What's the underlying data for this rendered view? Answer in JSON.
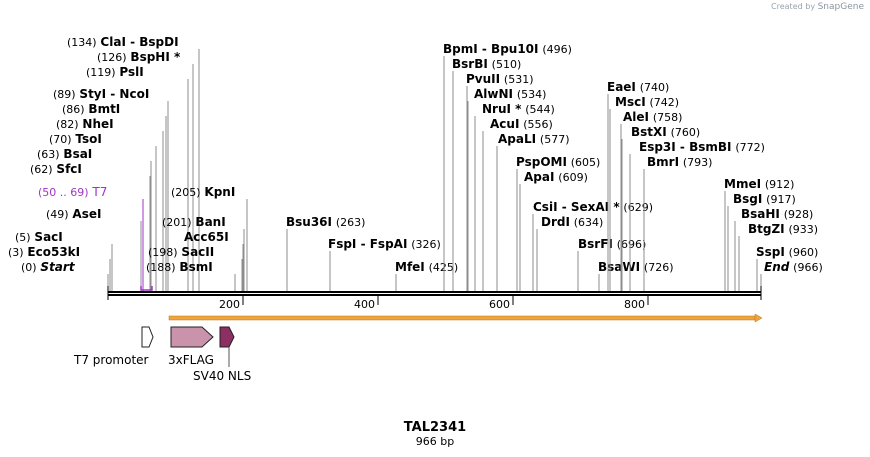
{
  "watermark": {
    "prefix": "Created by",
    "brand": "SnapGene"
  },
  "plasmid": {
    "name": "TAL2341",
    "length_label": "966 bp",
    "length": 966
  },
  "axis_ticks": [
    "200",
    "400",
    "600",
    "800"
  ],
  "sites": [
    {
      "name": "Start",
      "pos": "0",
      "end": true
    },
    {
      "name": "Eco53kI",
      "pos": "3"
    },
    {
      "name": "SacI",
      "pos": "5"
    },
    {
      "name": "AseI",
      "pos": "49"
    },
    {
      "name": "T7",
      "pos": "50 .. 69",
      "primer": true
    },
    {
      "name": "SfcI",
      "pos": "62"
    },
    {
      "name": "BsaI",
      "pos": "63"
    },
    {
      "name": "TsoI",
      "pos": "70"
    },
    {
      "name": "NheI",
      "pos": "82"
    },
    {
      "name": "BmtI",
      "pos": "86"
    },
    {
      "name": "StyI - NcoI",
      "pos": "89"
    },
    {
      "name": "PslI",
      "pos": "119"
    },
    {
      "name": "BspHI *",
      "pos": "126"
    },
    {
      "name": "ClaI - BspDI",
      "pos": "134"
    },
    {
      "name": "BsmI",
      "pos": "188"
    },
    {
      "name": "SacII",
      "pos": "198"
    },
    {
      "name": "Acc65I",
      "pos": ""
    },
    {
      "name": "BanI",
      "pos": "201"
    },
    {
      "name": "KpnI",
      "pos": "205"
    },
    {
      "name": "Bsu36I",
      "pos": "263"
    },
    {
      "name": "FspI - FspAI",
      "pos": "326"
    },
    {
      "name": "MfeI",
      "pos": "425"
    },
    {
      "name": "BpmI - Bpu10I",
      "pos": "496"
    },
    {
      "name": "BsrBI",
      "pos": "510"
    },
    {
      "name": "PvuII",
      "pos": "531"
    },
    {
      "name": "AlwNI",
      "pos": "534"
    },
    {
      "name": "NruI *",
      "pos": "544"
    },
    {
      "name": "AcuI",
      "pos": "556"
    },
    {
      "name": "ApaLI",
      "pos": "577"
    },
    {
      "name": "PspOMI",
      "pos": "605"
    },
    {
      "name": "ApaI",
      "pos": "609"
    },
    {
      "name": "CsiI - SexAI *",
      "pos": "629"
    },
    {
      "name": "DrdI",
      "pos": "634"
    },
    {
      "name": "BsrFI",
      "pos": "696"
    },
    {
      "name": "BsaWI",
      "pos": "726"
    },
    {
      "name": "EaeI",
      "pos": "740"
    },
    {
      "name": "MscI",
      "pos": "742"
    },
    {
      "name": "AleI",
      "pos": "758"
    },
    {
      "name": "BstXI",
      "pos": "760"
    },
    {
      "name": "Esp3I - BsmBI",
      "pos": "772"
    },
    {
      "name": "BmrI",
      "pos": "793"
    },
    {
      "name": "MmeI",
      "pos": "912"
    },
    {
      "name": "BsgI",
      "pos": "917"
    },
    {
      "name": "BsaHI",
      "pos": "928"
    },
    {
      "name": "BtgZI",
      "pos": "933"
    },
    {
      "name": "SspI",
      "pos": "960"
    },
    {
      "name": "End",
      "pos": "966",
      "end": true
    }
  ],
  "features": [
    {
      "name": "T7 promoter",
      "color": "#ffffff"
    },
    {
      "name": "3xFLAG",
      "color": "#c994ab"
    },
    {
      "name": "SV40 NLS",
      "color": "#8e2f63"
    }
  ],
  "colors": {
    "primer": "#a233c8",
    "orf": "#f0a43a",
    "text": "#000000",
    "line": "#999999"
  }
}
